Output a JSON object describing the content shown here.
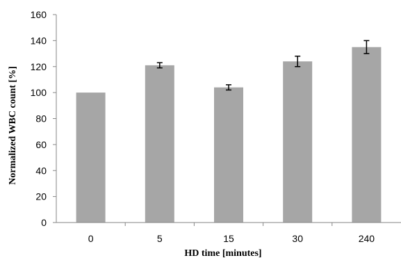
{
  "chart_data": {
    "type": "bar",
    "title": "",
    "xlabel": "HD time [minutes]",
    "ylabel": "Normalized  WBC count [%]",
    "categories": [
      "0",
      "5",
      "15",
      "30",
      "240"
    ],
    "values": [
      100,
      121,
      104,
      124,
      135
    ],
    "errors": [
      null,
      2,
      2,
      4,
      5
    ],
    "ylim": [
      0,
      160
    ],
    "yticks": [
      "0",
      "20",
      "40",
      "60",
      "80",
      "100",
      "120",
      "140",
      "160"
    ],
    "grid": false,
    "legend": "none",
    "bar_color": "#a6a6a6",
    "axis_color": "#868686"
  }
}
